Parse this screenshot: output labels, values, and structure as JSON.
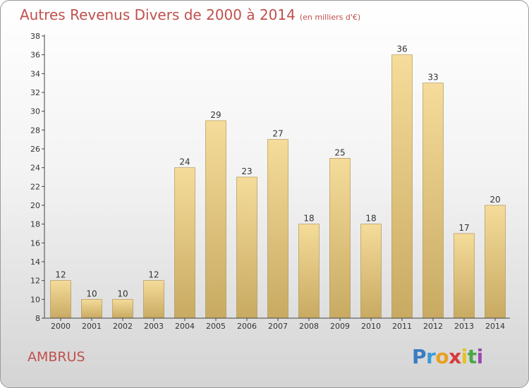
{
  "title": "Autres Revenus Divers de 2000 à 2014",
  "subtitle": "(en milliers d'€)",
  "commune": "AMBRUS",
  "logo": {
    "letters": [
      "P",
      "r",
      "o",
      "x",
      "i",
      "t",
      "i"
    ],
    "colors": [
      "#3a7cc1",
      "#3a9ad6",
      "#e8a020",
      "#d83a3a",
      "#e8c020",
      "#4aa84a",
      "#9a4ab0"
    ]
  },
  "colors": {
    "bar_top": "#f5dc9a",
    "bar_bottom": "#c8aa62",
    "bar_side": "#a88a48",
    "title": "#c0504d",
    "axis": "#444444"
  },
  "chart_data": {
    "type": "bar",
    "categories": [
      "2000",
      "2001",
      "2002",
      "2003",
      "2004",
      "2005",
      "2006",
      "2007",
      "2008",
      "2009",
      "2010",
      "2011",
      "2012",
      "2013",
      "2014"
    ],
    "values": [
      12,
      10,
      10,
      12,
      24,
      29,
      23,
      27,
      18,
      25,
      18,
      36,
      33,
      17,
      20
    ],
    "ylim": [
      8,
      38
    ],
    "yticks": [
      8,
      10,
      12,
      14,
      16,
      18,
      20,
      22,
      24,
      26,
      28,
      30,
      32,
      34,
      36,
      38
    ],
    "grid": false,
    "title": "Autres Revenus Divers de 2000 à 2014",
    "xlabel": "",
    "ylabel": ""
  }
}
